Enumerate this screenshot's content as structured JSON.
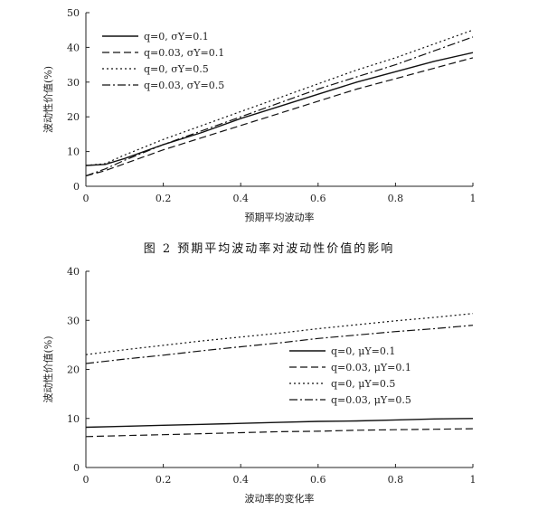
{
  "figure_caption": "图 2   预期平均波动率对波动性价值的影响",
  "chart_data": [
    {
      "type": "line",
      "title": "",
      "xlabel": "预期平均波动率",
      "ylabel": "波动性价值(%)",
      "xlim": [
        0,
        1
      ],
      "ylim": [
        0,
        50
      ],
      "xticks": [
        "0",
        "0.2",
        "0.4",
        "0.6",
        "0.8",
        "1"
      ],
      "yticks": [
        "0",
        "10",
        "20",
        "30",
        "40",
        "50"
      ],
      "grid": false,
      "legend": "top-left",
      "x": [
        0,
        0.05,
        0.1,
        0.2,
        0.3,
        0.4,
        0.5,
        0.6,
        0.7,
        0.8,
        0.9,
        1.0
      ],
      "series": [
        {
          "name": "q=0, σY=0.1",
          "style": "solid",
          "values": [
            6,
            6.3,
            8,
            12,
            15.5,
            19.5,
            23,
            26.5,
            30,
            33,
            36,
            38.5
          ]
        },
        {
          "name": "q=0.03, σY=0.1",
          "style": "dashed",
          "values": [
            3,
            4.5,
            6.5,
            10.5,
            14,
            17.5,
            21,
            24.5,
            28,
            31,
            34,
            37
          ]
        },
        {
          "name": "q=0, σY=0.5",
          "style": "dotted",
          "values": [
            6,
            6.5,
            9,
            13.5,
            17.5,
            21.5,
            25.5,
            29.5,
            33.5,
            37,
            41,
            45
          ]
        },
        {
          "name": "q=0.03, σY=0.5",
          "style": "dashdot",
          "values": [
            3,
            5,
            7.5,
            12,
            16,
            20,
            24,
            28,
            31.5,
            35,
            39,
            43
          ]
        }
      ]
    },
    {
      "type": "line",
      "title": "",
      "xlabel": "波动率的变化率",
      "ylabel": "波动性价值(%)",
      "xlim": [
        0,
        1
      ],
      "ylim": [
        0,
        40
      ],
      "xticks": [
        "0",
        "0.2",
        "0.4",
        "0.6",
        "0.8",
        "1"
      ],
      "yticks": [
        "0",
        "10",
        "20",
        "30",
        "40"
      ],
      "grid": false,
      "legend": "right",
      "x": [
        0,
        0.1,
        0.2,
        0.3,
        0.4,
        0.5,
        0.6,
        0.7,
        0.8,
        0.9,
        1.0
      ],
      "series": [
        {
          "name": "q=0, μY=0.1",
          "style": "solid",
          "values": [
            8.2,
            8.4,
            8.6,
            8.8,
            9.0,
            9.2,
            9.4,
            9.5,
            9.7,
            9.9,
            10.0
          ]
        },
        {
          "name": "q=0.03, μY=0.1",
          "style": "dashed",
          "values": [
            6.3,
            6.5,
            6.7,
            6.9,
            7.1,
            7.3,
            7.4,
            7.6,
            7.7,
            7.8,
            7.9
          ]
        },
        {
          "name": "q=0, μY=0.5",
          "style": "dotted",
          "values": [
            23,
            24.0,
            24.9,
            25.8,
            26.6,
            27.4,
            28.3,
            29.1,
            29.9,
            30.6,
            31.4
          ]
        },
        {
          "name": "q=0.03, μY=0.5",
          "style": "dashdot",
          "values": [
            21.2,
            22.1,
            22.9,
            23.8,
            24.6,
            25.4,
            26.3,
            27.0,
            27.7,
            28.3,
            29.0
          ]
        }
      ]
    }
  ]
}
